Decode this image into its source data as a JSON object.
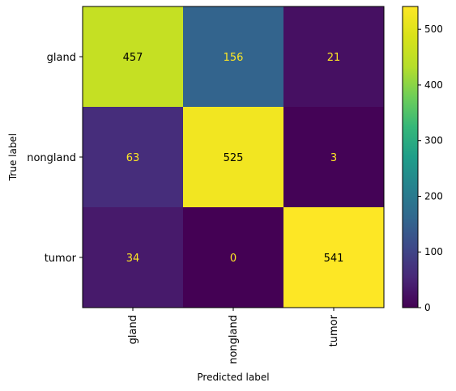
{
  "chart_data": {
    "type": "heatmap",
    "title": "",
    "xlabel": "Predicted label",
    "ylabel": "True label",
    "x_categories": [
      "gland",
      "nongland",
      "tumor"
    ],
    "y_categories": [
      "gland",
      "nongland",
      "tumor"
    ],
    "values": [
      [
        457,
        156,
        21
      ],
      [
        63,
        525,
        3
      ],
      [
        34,
        0,
        541
      ]
    ],
    "colormap": "viridis",
    "colorbar": {
      "vmin": 0,
      "vmax": 541,
      "ticks": [
        0,
        100,
        200,
        300,
        400,
        500
      ]
    },
    "text_color_dark_bg": "#fde725",
    "text_color_light_bg": "#000000",
    "grid": false
  }
}
